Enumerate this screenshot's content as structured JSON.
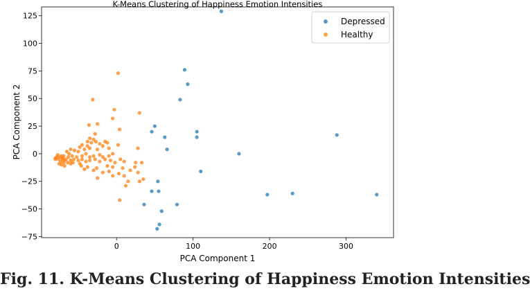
{
  "chart_data": {
    "type": "scatter",
    "title": "K-Means Clustering of Happiness Emotion Intensities",
    "xlabel": "PCA Component 1",
    "ylabel": "PCA Component 2",
    "xlim": [
      -98,
      362
    ],
    "ylim": [
      -76,
      133
    ],
    "xticks": [
      0,
      100,
      200,
      300
    ],
    "yticks": [
      -75,
      -50,
      -25,
      0,
      25,
      50,
      75,
      100,
      125
    ],
    "legend_position": "upper right",
    "series": [
      {
        "name": "Depressed",
        "color": "#1f77b4",
        "points": [
          [
            137,
            129
          ],
          [
            89,
            76
          ],
          [
            93,
            63
          ],
          [
            83,
            49
          ],
          [
            50,
            25
          ],
          [
            46,
            20
          ],
          [
            63,
            15
          ],
          [
            105,
            20
          ],
          [
            105,
            15
          ],
          [
            66,
            4
          ],
          [
            160,
            0
          ],
          [
            110,
            -16
          ],
          [
            54,
            -25
          ],
          [
            46,
            -34
          ],
          [
            55,
            -34
          ],
          [
            288,
            17
          ],
          [
            340,
            -37
          ],
          [
            230,
            -36
          ],
          [
            197,
            -37
          ],
          [
            79,
            -46
          ],
          [
            36,
            -46
          ],
          [
            59,
            -52
          ],
          [
            56,
            -64
          ],
          [
            53,
            -68
          ]
        ]
      },
      {
        "name": "Healthy",
        "color": "#ff7f0e",
        "points": [
          [
            2,
            73
          ],
          [
            -31,
            49
          ],
          [
            -3,
            40
          ],
          [
            -5,
            32
          ],
          [
            30,
            37
          ],
          [
            -36,
            26
          ],
          [
            -25,
            27
          ],
          [
            -28,
            18
          ],
          [
            4,
            22
          ],
          [
            -35,
            14
          ],
          [
            -30,
            13
          ],
          [
            -38,
            11
          ],
          [
            -33,
            10
          ],
          [
            -27,
            11
          ],
          [
            -15,
            11
          ],
          [
            -22,
            9
          ],
          [
            -12,
            10
          ],
          [
            -45,
            8
          ],
          [
            -38,
            7
          ],
          [
            -48,
            6
          ],
          [
            -18,
            7
          ],
          [
            2,
            8
          ],
          [
            -60,
            4
          ],
          [
            -55,
            3
          ],
          [
            -50,
            2
          ],
          [
            -42,
            4
          ],
          [
            -35,
            5
          ],
          [
            -25,
            4
          ],
          [
            -10,
            5
          ],
          [
            28,
            5
          ],
          [
            -65,
            2
          ],
          [
            -62,
            0
          ],
          [
            -58,
            -2
          ],
          [
            -52,
            -3
          ],
          [
            -45,
            -2
          ],
          [
            -40,
            0
          ],
          [
            -35,
            -3
          ],
          [
            -30,
            -2
          ],
          [
            -22,
            -1
          ],
          [
            -18,
            -3
          ],
          [
            -10,
            -2
          ],
          [
            -5,
            0
          ],
          [
            -72,
            -2
          ],
          [
            -70,
            -4
          ],
          [
            -68,
            -6
          ],
          [
            -74,
            -3
          ],
          [
            -76,
            -5
          ],
          [
            -73,
            -7
          ],
          [
            -69,
            -8
          ],
          [
            -66,
            -5
          ],
          [
            -64,
            -8
          ],
          [
            -60,
            -6
          ],
          [
            -56,
            -5
          ],
          [
            -50,
            -6
          ],
          [
            -45,
            -5
          ],
          [
            -40,
            -7
          ],
          [
            -35,
            -6
          ],
          [
            -28,
            -5
          ],
          [
            -22,
            -7
          ],
          [
            -15,
            -5
          ],
          [
            -8,
            -6
          ],
          [
            -2,
            -8
          ],
          [
            5,
            -5
          ],
          [
            10,
            -7
          ],
          [
            -78,
            -3
          ],
          [
            -80,
            -5
          ],
          [
            -75,
            -9
          ],
          [
            -72,
            -10
          ],
          [
            -68,
            -11
          ],
          [
            -60,
            -9
          ],
          [
            -46,
            -11
          ],
          [
            -38,
            -12
          ],
          [
            -26,
            -13
          ],
          [
            -12,
            -11
          ],
          [
            -5,
            -12
          ],
          [
            8,
            -13
          ],
          [
            18,
            -15
          ],
          [
            24,
            -12
          ],
          [
            -42,
            -14
          ],
          [
            -30,
            -15
          ],
          [
            -18,
            -17
          ],
          [
            -10,
            -16
          ],
          [
            3,
            -18
          ],
          [
            10,
            -20
          ],
          [
            -25,
            -22
          ],
          [
            -5,
            -20
          ],
          [
            15,
            -25
          ],
          [
            12,
            -29
          ],
          [
            35,
            -23
          ],
          [
            30,
            -25
          ],
          [
            28,
            -17
          ],
          [
            33,
            -8
          ],
          [
            25,
            -8
          ],
          [
            4,
            -42
          ],
          [
            -80,
            -4
          ],
          [
            -77,
            -1
          ],
          [
            -71,
            -5
          ],
          [
            -69,
            -2
          ],
          [
            -63,
            -3
          ],
          [
            -57,
            -8
          ],
          [
            -48,
            -9
          ]
        ]
      }
    ]
  },
  "caption": "Fig. 11. K-Means Clustering of Happiness Emotion Intensities"
}
